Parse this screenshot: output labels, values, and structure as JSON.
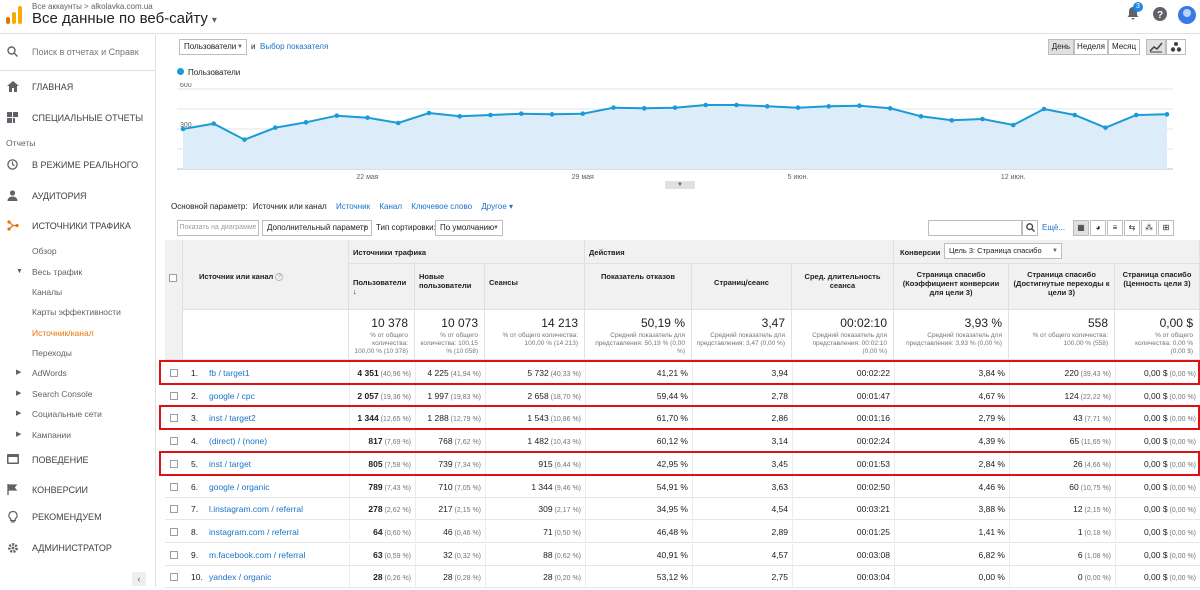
{
  "topbar": {
    "breadcrumb": "Все аккаунты > alkolavka.com.ua",
    "account_view": "Все данные по веб-сайту",
    "notif_count": "3",
    "brand_colors": {
      "logo_orange": "#f9ab00",
      "logo_dark": "#e37400"
    }
  },
  "sidebar": {
    "search_placeholder": "Поиск в отчетах и Справк",
    "home": "ГЛАВНАЯ",
    "custom": "СПЕЦИАЛЬНЫЕ ОТЧЕТЫ",
    "reports_label": "Отчеты",
    "realtime": "В РЕЖИМЕ РЕАЛЬНОГО",
    "audience": "АУДИТОРИЯ",
    "acquisition": "ИСТОЧНИКИ ТРАФИКА",
    "sub": [
      "Обзор",
      "Весь трафик",
      "Каналы",
      "Карты эффективности",
      "Источник/канал",
      "Переходы",
      "AdWords",
      "Search Console",
      "Социальные сети",
      "Кампании"
    ],
    "behavior": "ПОВЕДЕНИЕ",
    "conversions": "КОНВЕРСИИ",
    "discover": "РЕКОМЕНДУЕМ",
    "admin": "АДМИНИСТРАТОР",
    "collapse": "‹"
  },
  "controls": {
    "metric_select": "Пользователи",
    "and_label": "и",
    "choose_metric": "Выбор показателя",
    "day": "День",
    "week": "Неделя",
    "month": "Месяц"
  },
  "chart_data": {
    "type": "line",
    "legend": "Пользователи",
    "y_ticks": [
      "600",
      "300"
    ],
    "ylim": [
      0,
      600
    ],
    "x_ticks": [
      "22 мая",
      "29 мая",
      "5 июн.",
      "12 июн."
    ],
    "series": [
      {
        "name": "Пользователи",
        "values": [
          300,
          340,
          220,
          310,
          350,
          400,
          385,
          345,
          420,
          395,
          405,
          415,
          410,
          415,
          460,
          455,
          460,
          480,
          480,
          470,
          460,
          470,
          475,
          455,
          395,
          365,
          375,
          330,
          450,
          405,
          310,
          405,
          410
        ]
      }
    ],
    "color": "#1a9ad6"
  },
  "dimension_bar": {
    "primary_label": "Основной параметр:",
    "options": [
      "Источник или канал",
      "Источник",
      "Канал",
      "Ключевое слово",
      "Другое"
    ]
  },
  "toolbar": {
    "plot_rows": "Показать на диаграмме",
    "secondary": "Дополнительный параметр",
    "sort_type_label": "Тип сортировки:",
    "sort_type": "По умолчанию",
    "advanced": "Ещё..."
  },
  "table": {
    "dim_header": "Источник или канал",
    "group_acq": "Источники трафика",
    "group_beh": "Действия",
    "group_conv": "Конверсии",
    "goal_select": "Цель 3: Страница спасибо",
    "cols": [
      "Пользователи",
      "Новые пользователи",
      "Сеансы",
      "Показатель отказов",
      "Страниц/сеанс",
      "Сред. длительность сеанса",
      "Страница спасибо (Коэффициент конверсии для цели 3)",
      "Страница спасибо (Достигнутые переходы к цели 3)",
      "Страница спасибо (Ценность цели 3)"
    ],
    "totals": [
      {
        "big": "10 378",
        "sm": "% от общего количества: 100,00 % (10 378)"
      },
      {
        "big": "10 073",
        "sm": "% от общего количества: 100,15 % (10 058)"
      },
      {
        "big": "14 213",
        "sm": "% от общего количества: 100,00 % (14 213)"
      },
      {
        "big": "50,19 %",
        "sm": "Средний показатель для представления: 50,19 % (0,00 %)"
      },
      {
        "big": "3,47",
        "sm": "Средний показатель для представления: 3,47 (0,00 %)"
      },
      {
        "big": "00:02:10",
        "sm": "Средний показатель для представления: 00:02:10 (0,00 %)"
      },
      {
        "big": "3,93 %",
        "sm": "Средний показатель для представления: 3,93 % (0,00 %)"
      },
      {
        "big": "558",
        "sm": "% от общего количества: 100,00 % (558)"
      },
      {
        "big": "0,00 $",
        "sm": "% от общего количества: 0,00 % (0,00 $)"
      }
    ],
    "rows": [
      {
        "n": "1.",
        "src": "fb / target1",
        "u": "4 351",
        "up": "(40,96 %)",
        "nu": "4 225",
        "nup": "(41,94 %)",
        "s": "5 732",
        "sp": "(40,33 %)",
        "br": "41,21 %",
        "pps": "3,94",
        "dur": "00:02:22",
        "cr": "3,84 %",
        "gc": "220",
        "gcp": "(39,43 %)",
        "v": "0,00 $",
        "vp": "(0,00 %)"
      },
      {
        "n": "2.",
        "src": "google / cpc",
        "u": "2 057",
        "up": "(19,36 %)",
        "nu": "1 997",
        "nup": "(19,83 %)",
        "s": "2 658",
        "sp": "(18,70 %)",
        "br": "59,44 %",
        "pps": "2,78",
        "dur": "00:01:47",
        "cr": "4,67 %",
        "gc": "124",
        "gcp": "(22,22 %)",
        "v": "0,00 $",
        "vp": "(0,00 %)"
      },
      {
        "n": "3.",
        "src": "inst / target2",
        "u": "1 344",
        "up": "(12,65 %)",
        "nu": "1 288",
        "nup": "(12,79 %)",
        "s": "1 543",
        "sp": "(10,86 %)",
        "br": "61,70 %",
        "pps": "2,86",
        "dur": "00:01:16",
        "cr": "2,79 %",
        "gc": "43",
        "gcp": "(7,71 %)",
        "v": "0,00 $",
        "vp": "(0,00 %)"
      },
      {
        "n": "4.",
        "src": "(direct) / (none)",
        "u": "817",
        "up": "(7,69 %)",
        "nu": "768",
        "nup": "(7,62 %)",
        "s": "1 482",
        "sp": "(10,43 %)",
        "br": "60,12 %",
        "pps": "3,14",
        "dur": "00:02:24",
        "cr": "4,39 %",
        "gc": "65",
        "gcp": "(11,65 %)",
        "v": "0,00 $",
        "vp": "(0,00 %)"
      },
      {
        "n": "5.",
        "src": "inst / target",
        "u": "805",
        "up": "(7,58 %)",
        "nu": "739",
        "nup": "(7,34 %)",
        "s": "915",
        "sp": "(6,44 %)",
        "br": "42,95 %",
        "pps": "3,45",
        "dur": "00:01:53",
        "cr": "2,84 %",
        "gc": "26",
        "gcp": "(4,66 %)",
        "v": "0,00 $",
        "vp": "(0,00 %)"
      },
      {
        "n": "6.",
        "src": "google / organic",
        "u": "789",
        "up": "(7,43 %)",
        "nu": "710",
        "nup": "(7,05 %)",
        "s": "1 344",
        "sp": "(9,46 %)",
        "br": "54,91 %",
        "pps": "3,63",
        "dur": "00:02:50",
        "cr": "4,46 %",
        "gc": "60",
        "gcp": "(10,75 %)",
        "v": "0,00 $",
        "vp": "(0,00 %)"
      },
      {
        "n": "7.",
        "src": "l.instagram.com / referral",
        "u": "278",
        "up": "(2,62 %)",
        "nu": "217",
        "nup": "(2,15 %)",
        "s": "309",
        "sp": "(2,17 %)",
        "br": "34,95 %",
        "pps": "4,54",
        "dur": "00:03:21",
        "cr": "3,88 %",
        "gc": "12",
        "gcp": "(2,15 %)",
        "v": "0,00 $",
        "vp": "(0,00 %)"
      },
      {
        "n": "8.",
        "src": "instagram.com / referral",
        "u": "64",
        "up": "(0,60 %)",
        "nu": "46",
        "nup": "(0,46 %)",
        "s": "71",
        "sp": "(0,50 %)",
        "br": "46,48 %",
        "pps": "2,89",
        "dur": "00:01:25",
        "cr": "1,41 %",
        "gc": "1",
        "gcp": "(0,18 %)",
        "v": "0,00 $",
        "vp": "(0,00 %)"
      },
      {
        "n": "9.",
        "src": "m.facebook.com / referral",
        "u": "63",
        "up": "(0,59 %)",
        "nu": "32",
        "nup": "(0,32 %)",
        "s": "88",
        "sp": "(0,62 %)",
        "br": "40,91 %",
        "pps": "4,57",
        "dur": "00:03:08",
        "cr": "6,82 %",
        "gc": "6",
        "gcp": "(1,08 %)",
        "v": "0,00 $",
        "vp": "(0,00 %)"
      },
      {
        "n": "10.",
        "src": "yandex / organic",
        "u": "28",
        "up": "(0,26 %)",
        "nu": "28",
        "nup": "(0,28 %)",
        "s": "28",
        "sp": "(0,20 %)",
        "br": "53,12 %",
        "pps": "2,75",
        "dur": "00:03:04",
        "cr": "0,00 %",
        "gc": "0",
        "gcp": "(0,00 %)",
        "v": "0,00 $",
        "vp": "(0,00 %)"
      }
    ]
  }
}
